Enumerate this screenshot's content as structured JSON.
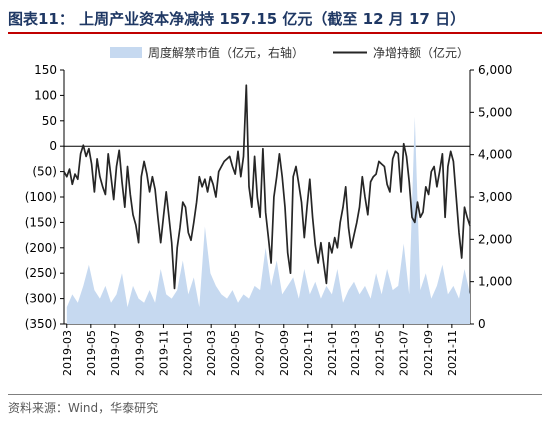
{
  "header": {
    "title": "图表11： 上周产业资本净减持 157.15 亿元（截至 12 月 17 日）"
  },
  "footer": {
    "source": "资料来源：Wind，华泰研究"
  },
  "colors": {
    "title": "#1f3864",
    "title_rule": "#c00000",
    "line_series": "#262626",
    "area_series": "#c6d9f0"
  },
  "chart_data": {
    "type": "line",
    "legend_position": "top",
    "grid": false,
    "x_ticks": [
      "2019-03",
      "2019-05",
      "2019-07",
      "2019-09",
      "2019-11",
      "2020-01",
      "2020-03",
      "2020-05",
      "2020-07",
      "2020-09",
      "2020-11",
      "2021-01",
      "2021-03",
      "2021-05",
      "2021-07",
      "2021-09",
      "2021-11"
    ],
    "x_range": [
      "2019-02-22",
      "2021-12-17"
    ],
    "left_axis": {
      "ticks": [
        "150",
        "100",
        "50",
        "0",
        "(50)",
        "(100)",
        "(150)",
        "(200)",
        "(250)",
        "(300)",
        "(350)"
      ],
      "range": [
        -350,
        150
      ]
    },
    "right_axis": {
      "ticks": [
        "6,000",
        "5,000",
        "4,000",
        "3,000",
        "2,000",
        "1,000",
        "0"
      ],
      "range": [
        0,
        6000
      ]
    },
    "series": [
      {
        "name": "周度解禁市值（亿元，右轴）",
        "type": "area",
        "axis": "right",
        "points": [
          [
            "2019-03-01",
            400
          ],
          [
            "2019-03-15",
            700
          ],
          [
            "2019-03-29",
            500
          ],
          [
            "2019-04-12",
            900
          ],
          [
            "2019-04-26",
            1400
          ],
          [
            "2019-05-10",
            800
          ],
          [
            "2019-05-24",
            600
          ],
          [
            "2019-06-07",
            900
          ],
          [
            "2019-06-21",
            500
          ],
          [
            "2019-07-05",
            700
          ],
          [
            "2019-07-19",
            1200
          ],
          [
            "2019-08-02",
            400
          ],
          [
            "2019-08-16",
            900
          ],
          [
            "2019-08-30",
            600
          ],
          [
            "2019-09-13",
            500
          ],
          [
            "2019-09-27",
            800
          ],
          [
            "2019-10-11",
            500
          ],
          [
            "2019-10-25",
            1300
          ],
          [
            "2019-11-08",
            700
          ],
          [
            "2019-11-22",
            600
          ],
          [
            "2019-12-06",
            800
          ],
          [
            "2019-12-20",
            1500
          ],
          [
            "2020-01-03",
            700
          ],
          [
            "2020-01-17",
            1100
          ],
          [
            "2020-01-31",
            400
          ],
          [
            "2020-02-14",
            2300
          ],
          [
            "2020-02-28",
            1200
          ],
          [
            "2020-03-13",
            900
          ],
          [
            "2020-03-27",
            700
          ],
          [
            "2020-04-10",
            600
          ],
          [
            "2020-04-24",
            800
          ],
          [
            "2020-05-08",
            500
          ],
          [
            "2020-05-22",
            700
          ],
          [
            "2020-06-05",
            600
          ],
          [
            "2020-06-19",
            900
          ],
          [
            "2020-07-03",
            800
          ],
          [
            "2020-07-17",
            1800
          ],
          [
            "2020-07-31",
            900
          ],
          [
            "2020-08-14",
            1500
          ],
          [
            "2020-08-28",
            700
          ],
          [
            "2020-09-11",
            900
          ],
          [
            "2020-09-25",
            1100
          ],
          [
            "2020-10-09",
            600
          ],
          [
            "2020-10-23",
            1300
          ],
          [
            "2020-11-06",
            700
          ],
          [
            "2020-11-20",
            1000
          ],
          [
            "2020-12-04",
            600
          ],
          [
            "2020-12-18",
            900
          ],
          [
            "2021-01-01",
            700
          ],
          [
            "2021-01-15",
            1300
          ],
          [
            "2021-01-29",
            500
          ],
          [
            "2021-02-12",
            800
          ],
          [
            "2021-02-26",
            1000
          ],
          [
            "2021-03-12",
            700
          ],
          [
            "2021-03-26",
            900
          ],
          [
            "2021-04-09",
            600
          ],
          [
            "2021-04-23",
            1200
          ],
          [
            "2021-05-07",
            700
          ],
          [
            "2021-05-21",
            1300
          ],
          [
            "2021-06-04",
            800
          ],
          [
            "2021-06-18",
            900
          ],
          [
            "2021-07-02",
            1900
          ],
          [
            "2021-07-16",
            700
          ],
          [
            "2021-07-30",
            4900
          ],
          [
            "2021-08-13",
            800
          ],
          [
            "2021-08-27",
            1200
          ],
          [
            "2021-09-10",
            600
          ],
          [
            "2021-09-24",
            900
          ],
          [
            "2021-10-08",
            1400
          ],
          [
            "2021-10-22",
            700
          ],
          [
            "2021-11-05",
            900
          ],
          [
            "2021-11-19",
            600
          ],
          [
            "2021-12-03",
            1300
          ],
          [
            "2021-12-17",
            700
          ]
        ]
      },
      {
        "name": "净增持额（亿元）",
        "type": "line",
        "axis": "left",
        "points": [
          [
            "2019-02-22",
            -50
          ],
          [
            "2019-03-01",
            -60
          ],
          [
            "2019-03-08",
            -45
          ],
          [
            "2019-03-15",
            -75
          ],
          [
            "2019-03-22",
            -55
          ],
          [
            "2019-03-29",
            -65
          ],
          [
            "2019-04-05",
            -15
          ],
          [
            "2019-04-12",
            2
          ],
          [
            "2019-04-19",
            -20
          ],
          [
            "2019-04-26",
            -5
          ],
          [
            "2019-05-03",
            -35
          ],
          [
            "2019-05-10",
            -90
          ],
          [
            "2019-05-17",
            -25
          ],
          [
            "2019-05-24",
            -60
          ],
          [
            "2019-05-31",
            -80
          ],
          [
            "2019-06-07",
            -95
          ],
          [
            "2019-06-14",
            -15
          ],
          [
            "2019-06-21",
            -60
          ],
          [
            "2019-06-28",
            -105
          ],
          [
            "2019-07-05",
            -40
          ],
          [
            "2019-07-12",
            -8
          ],
          [
            "2019-07-19",
            -70
          ],
          [
            "2019-07-26",
            -120
          ],
          [
            "2019-08-02",
            -40
          ],
          [
            "2019-08-09",
            -95
          ],
          [
            "2019-08-16",
            -135
          ],
          [
            "2019-08-23",
            -155
          ],
          [
            "2019-08-30",
            -190
          ],
          [
            "2019-09-06",
            -60
          ],
          [
            "2019-09-13",
            -30
          ],
          [
            "2019-09-20",
            -55
          ],
          [
            "2019-09-27",
            -90
          ],
          [
            "2019-10-04",
            -60
          ],
          [
            "2019-10-11",
            -85
          ],
          [
            "2019-10-18",
            -140
          ],
          [
            "2019-10-25",
            -190
          ],
          [
            "2019-11-01",
            -140
          ],
          [
            "2019-11-08",
            -90
          ],
          [
            "2019-11-15",
            -140
          ],
          [
            "2019-11-22",
            -190
          ],
          [
            "2019-11-29",
            -280
          ],
          [
            "2019-12-06",
            -200
          ],
          [
            "2019-12-13",
            -160
          ],
          [
            "2019-12-20",
            -110
          ],
          [
            "2019-12-27",
            -120
          ],
          [
            "2020-01-03",
            -170
          ],
          [
            "2020-01-10",
            -185
          ],
          [
            "2020-01-17",
            -150
          ],
          [
            "2020-01-24",
            -110
          ],
          [
            "2020-01-31",
            -60
          ],
          [
            "2020-02-07",
            -80
          ],
          [
            "2020-02-14",
            -65
          ],
          [
            "2020-02-21",
            -90
          ],
          [
            "2020-02-28",
            -60
          ],
          [
            "2020-03-06",
            -75
          ],
          [
            "2020-03-13",
            -100
          ],
          [
            "2020-03-20",
            -50
          ],
          [
            "2020-03-27",
            -40
          ],
          [
            "2020-04-03",
            -30
          ],
          [
            "2020-04-10",
            -25
          ],
          [
            "2020-04-17",
            -20
          ],
          [
            "2020-04-24",
            -40
          ],
          [
            "2020-05-01",
            -55
          ],
          [
            "2020-05-08",
            -10
          ],
          [
            "2020-05-15",
            -60
          ],
          [
            "2020-05-22",
            -20
          ],
          [
            "2020-05-29",
            120
          ],
          [
            "2020-06-05",
            -80
          ],
          [
            "2020-06-12",
            -120
          ],
          [
            "2020-06-19",
            -20
          ],
          [
            "2020-06-26",
            -100
          ],
          [
            "2020-07-03",
            -140
          ],
          [
            "2020-07-10",
            -5
          ],
          [
            "2020-07-17",
            -130
          ],
          [
            "2020-07-24",
            -180
          ],
          [
            "2020-07-31",
            -230
          ],
          [
            "2020-08-07",
            -100
          ],
          [
            "2020-08-14",
            -60
          ],
          [
            "2020-08-21",
            -15
          ],
          [
            "2020-08-28",
            -60
          ],
          [
            "2020-09-04",
            -120
          ],
          [
            "2020-09-11",
            -210
          ],
          [
            "2020-09-18",
            -250
          ],
          [
            "2020-09-25",
            -60
          ],
          [
            "2020-10-02",
            -40
          ],
          [
            "2020-10-09",
            -75
          ],
          [
            "2020-10-16",
            -110
          ],
          [
            "2020-10-23",
            -180
          ],
          [
            "2020-10-30",
            -120
          ],
          [
            "2020-11-06",
            -65
          ],
          [
            "2020-11-13",
            -140
          ],
          [
            "2020-11-20",
            -195
          ],
          [
            "2020-11-27",
            -230
          ],
          [
            "2020-12-04",
            -190
          ],
          [
            "2020-12-11",
            -230
          ],
          [
            "2020-12-18",
            -270
          ],
          [
            "2020-12-25",
            -190
          ],
          [
            "2021-01-01",
            -210
          ],
          [
            "2021-01-08",
            -180
          ],
          [
            "2021-01-15",
            -200
          ],
          [
            "2021-01-22",
            -150
          ],
          [
            "2021-01-29",
            -120
          ],
          [
            "2021-02-05",
            -80
          ],
          [
            "2021-02-12",
            -160
          ],
          [
            "2021-02-19",
            -200
          ],
          [
            "2021-02-26",
            -175
          ],
          [
            "2021-03-05",
            -150
          ],
          [
            "2021-03-12",
            -120
          ],
          [
            "2021-03-19",
            -60
          ],
          [
            "2021-03-26",
            -100
          ],
          [
            "2021-04-02",
            -135
          ],
          [
            "2021-04-09",
            -70
          ],
          [
            "2021-04-16",
            -60
          ],
          [
            "2021-04-23",
            -55
          ],
          [
            "2021-04-30",
            -30
          ],
          [
            "2021-05-07",
            -35
          ],
          [
            "2021-05-14",
            -40
          ],
          [
            "2021-05-21",
            -75
          ],
          [
            "2021-05-28",
            -90
          ],
          [
            "2021-06-04",
            -25
          ],
          [
            "2021-06-11",
            -10
          ],
          [
            "2021-06-18",
            -15
          ],
          [
            "2021-06-25",
            -90
          ],
          [
            "2021-07-02",
            5
          ],
          [
            "2021-07-09",
            -20
          ],
          [
            "2021-07-16",
            -70
          ],
          [
            "2021-07-23",
            -140
          ],
          [
            "2021-07-30",
            -150
          ],
          [
            "2021-08-06",
            -110
          ],
          [
            "2021-08-13",
            -140
          ],
          [
            "2021-08-20",
            -130
          ],
          [
            "2021-08-27",
            -80
          ],
          [
            "2021-09-03",
            -95
          ],
          [
            "2021-09-10",
            -50
          ],
          [
            "2021-09-17",
            -40
          ],
          [
            "2021-09-24",
            -80
          ],
          [
            "2021-10-01",
            -50
          ],
          [
            "2021-10-08",
            -15
          ],
          [
            "2021-10-15",
            -140
          ],
          [
            "2021-10-22",
            -40
          ],
          [
            "2021-10-29",
            -10
          ],
          [
            "2021-11-05",
            -30
          ],
          [
            "2021-11-12",
            -100
          ],
          [
            "2021-11-19",
            -170
          ],
          [
            "2021-11-26",
            -220
          ],
          [
            "2021-12-03",
            -120
          ],
          [
            "2021-12-10",
            -140
          ],
          [
            "2021-12-17",
            -157.15
          ]
        ]
      }
    ]
  }
}
